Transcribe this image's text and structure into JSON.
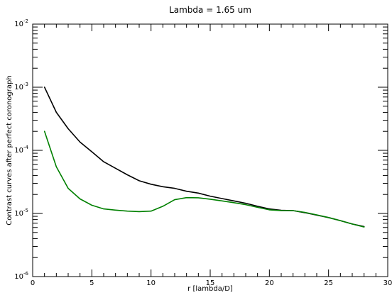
{
  "chart_data": {
    "type": "line",
    "title": "Lambda = 1.65 um",
    "xlabel": "r [lambda/D]",
    "ylabel": "Contrast curves after perfect coronograph",
    "xlim": [
      0,
      30
    ],
    "ylim": [
      1e-06,
      0.01
    ],
    "yscale": "log",
    "x_ticks": [
      "0",
      "5",
      "10",
      "15",
      "20",
      "25",
      "30"
    ],
    "y_ticks": [
      {
        "base": "10",
        "exp": "-6",
        "value": 1e-06
      },
      {
        "base": "10",
        "exp": "-5",
        "value": 1e-05
      },
      {
        "base": "10",
        "exp": "-4",
        "value": 0.0001
      },
      {
        "base": "10",
        "exp": "-3",
        "value": 0.001
      },
      {
        "base": "10",
        "exp": "-2",
        "value": 0.01
      }
    ],
    "grid": false,
    "series": [
      {
        "color": "#000000",
        "x": [
          1,
          2,
          3,
          4,
          5,
          6,
          7,
          8,
          9,
          10,
          11,
          12,
          13,
          14,
          15,
          16,
          17,
          18,
          19,
          20,
          21,
          22,
          23,
          24,
          25,
          26,
          27,
          28
        ],
        "y": [
          0.001,
          0.0004,
          0.00022,
          0.000135,
          9.5e-05,
          6.6e-05,
          5.2e-05,
          4.1e-05,
          3.3e-05,
          2.9e-05,
          2.65e-05,
          2.5e-05,
          2.25e-05,
          2.1e-05,
          1.88e-05,
          1.72e-05,
          1.58e-05,
          1.45e-05,
          1.3e-05,
          1.18e-05,
          1.12e-05,
          1.11e-05,
          1.03e-05,
          9.4e-06,
          8.6e-06,
          7.7e-06,
          6.8e-06,
          6.2e-06
        ]
      },
      {
        "color": "#008000",
        "x": [
          1,
          2,
          3,
          4,
          5,
          6,
          7,
          8,
          9,
          10,
          11,
          12,
          13,
          14,
          15,
          16,
          17,
          18,
          19,
          20,
          21,
          22,
          23,
          24,
          25,
          26,
          27,
          28
        ],
        "y": [
          0.0002,
          5.5e-05,
          2.5e-05,
          1.7e-05,
          1.35e-05,
          1.18e-05,
          1.13e-05,
          1.09e-05,
          1.07e-05,
          1.09e-05,
          1.3e-05,
          1.65e-05,
          1.78e-05,
          1.77e-05,
          1.68e-05,
          1.58e-05,
          1.48e-05,
          1.38e-05,
          1.25e-05,
          1.14e-05,
          1.11e-05,
          1.11e-05,
          1.04e-05,
          9.5e-06,
          8.6e-06,
          7.7e-06,
          6.8e-06,
          6.1e-06
        ]
      }
    ]
  }
}
